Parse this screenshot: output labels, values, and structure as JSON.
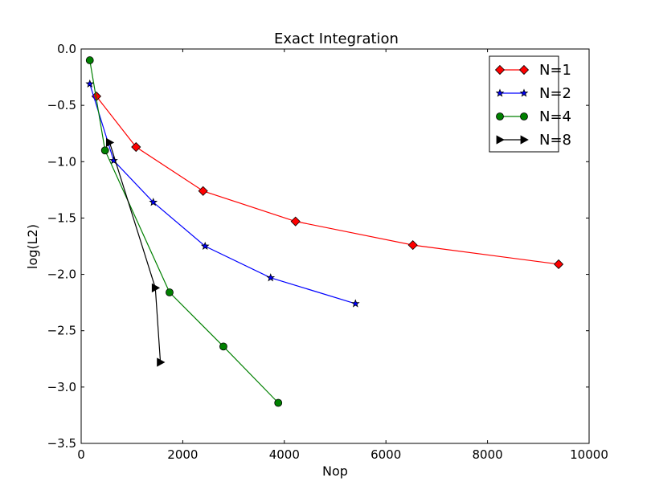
{
  "chart_data": {
    "type": "line",
    "title": "Exact Integration",
    "xlabel": "Nop",
    "ylabel": "log(L2)",
    "xlim": [
      0,
      10000
    ],
    "ylim": [
      -3.5,
      0.0
    ],
    "xticks": [
      "0",
      "2000",
      "4000",
      "6000",
      "8000",
      "10000"
    ],
    "yticks": [
      "0.0",
      "−0.5",
      "−1.0",
      "−1.5",
      "−2.0",
      "−2.5",
      "−3.0",
      "−3.5"
    ],
    "grid": false,
    "legend_position": "top-right",
    "series": [
      {
        "name": "N=1",
        "color": "#ff0000",
        "marker": "diamond",
        "x": [
          300,
          1080,
          2400,
          4220,
          6530,
          9400
        ],
        "y": [
          -0.42,
          -0.87,
          -1.26,
          -1.53,
          -1.74,
          -1.91
        ]
      },
      {
        "name": "N=2",
        "color": "#0000ff",
        "marker": "star",
        "x": [
          170,
          640,
          1420,
          2440,
          3730,
          5400
        ],
        "y": [
          -0.31,
          -0.99,
          -1.36,
          -1.75,
          -2.03,
          -2.26
        ]
      },
      {
        "name": "N=4",
        "color": "#008000",
        "marker": "circle",
        "x": [
          170,
          470,
          1740,
          2800,
          3880
        ],
        "y": [
          -0.1,
          -0.9,
          -2.16,
          -2.64,
          -3.14
        ]
      },
      {
        "name": "N=8",
        "color": "#000000",
        "marker": "triangle-right",
        "x": [
          560,
          1460,
          1560
        ],
        "y": [
          -0.83,
          -2.12,
          -2.78
        ]
      }
    ]
  }
}
